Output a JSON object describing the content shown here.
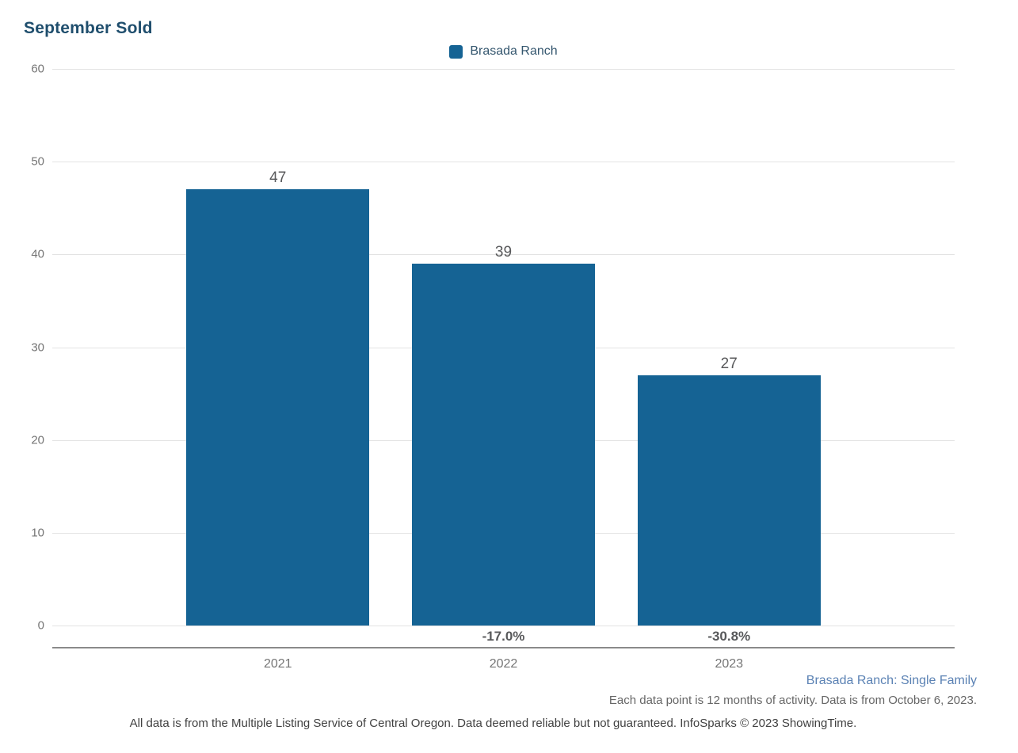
{
  "title": "September Sold",
  "legend": {
    "label": "Brasada Ranch"
  },
  "chart_data": {
    "type": "bar",
    "title": "September Sold",
    "categories": [
      "2021",
      "2022",
      "2023"
    ],
    "series": [
      {
        "name": "Brasada Ranch",
        "values": [
          47,
          39,
          27
        ]
      }
    ],
    "value_labels": [
      "47",
      "39",
      "27"
    ],
    "pct_change_labels": [
      "",
      "-17.0%",
      "-30.8%"
    ],
    "xlabel": "",
    "ylabel": "",
    "ylim": [
      0,
      60
    ],
    "yticks": [
      0,
      10,
      20,
      30,
      40,
      50,
      60
    ],
    "grid": "horizontal",
    "legend_position": "top-center"
  },
  "footnotes": {
    "series_description": "Brasada Ranch: Single Family",
    "data_note": "Each data point is 12 months of activity. Data is from October 6, 2023.",
    "disclaimer": "All data is from the Multiple Listing Service of Central Oregon. Data deemed reliable but not guaranteed. InfoSparks © 2023 ShowingTime."
  },
  "colors": {
    "bar": "#156394",
    "title_text": "#1f4e6d",
    "legend_text": "#34566e",
    "axis_text": "#757575",
    "value_label_text": "#58595b",
    "grid_line": "#e3e3e3",
    "axis_line": "#8a8a8a",
    "series_link": "#5b82b4",
    "note_text": "#666666",
    "disclaimer_text": "#414141"
  }
}
